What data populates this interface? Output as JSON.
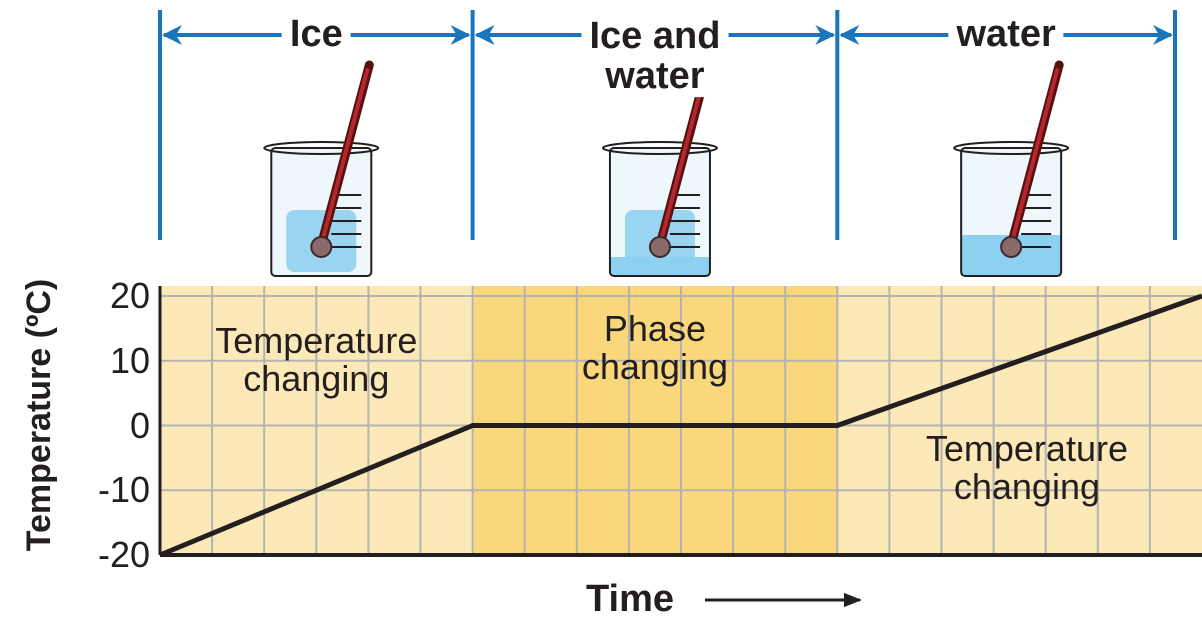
{
  "chart_data": {
    "type": "line",
    "y_label": "Temperature (ºC)",
    "x_label": "Time",
    "x": [
      0,
      6,
      13,
      20
    ],
    "values": [
      -20,
      0,
      0,
      20
    ],
    "xlim": [
      0,
      20
    ],
    "ylim": [
      -20,
      20
    ],
    "yticks": [
      -20,
      -10,
      0,
      10,
      20
    ],
    "color": "#231f20",
    "grid": true,
    "phases": [
      {
        "name": "Ice",
        "region_label": "Temperature\nchanging",
        "fill": "#fde9b8"
      },
      {
        "name": "Ice and\nwater",
        "region_label": "Phase\nchanging",
        "fill": "#fbd77c"
      },
      {
        "name": "water",
        "region_label": "Temperature\nchanging",
        "fill": "#fde9b8"
      }
    ]
  }
}
